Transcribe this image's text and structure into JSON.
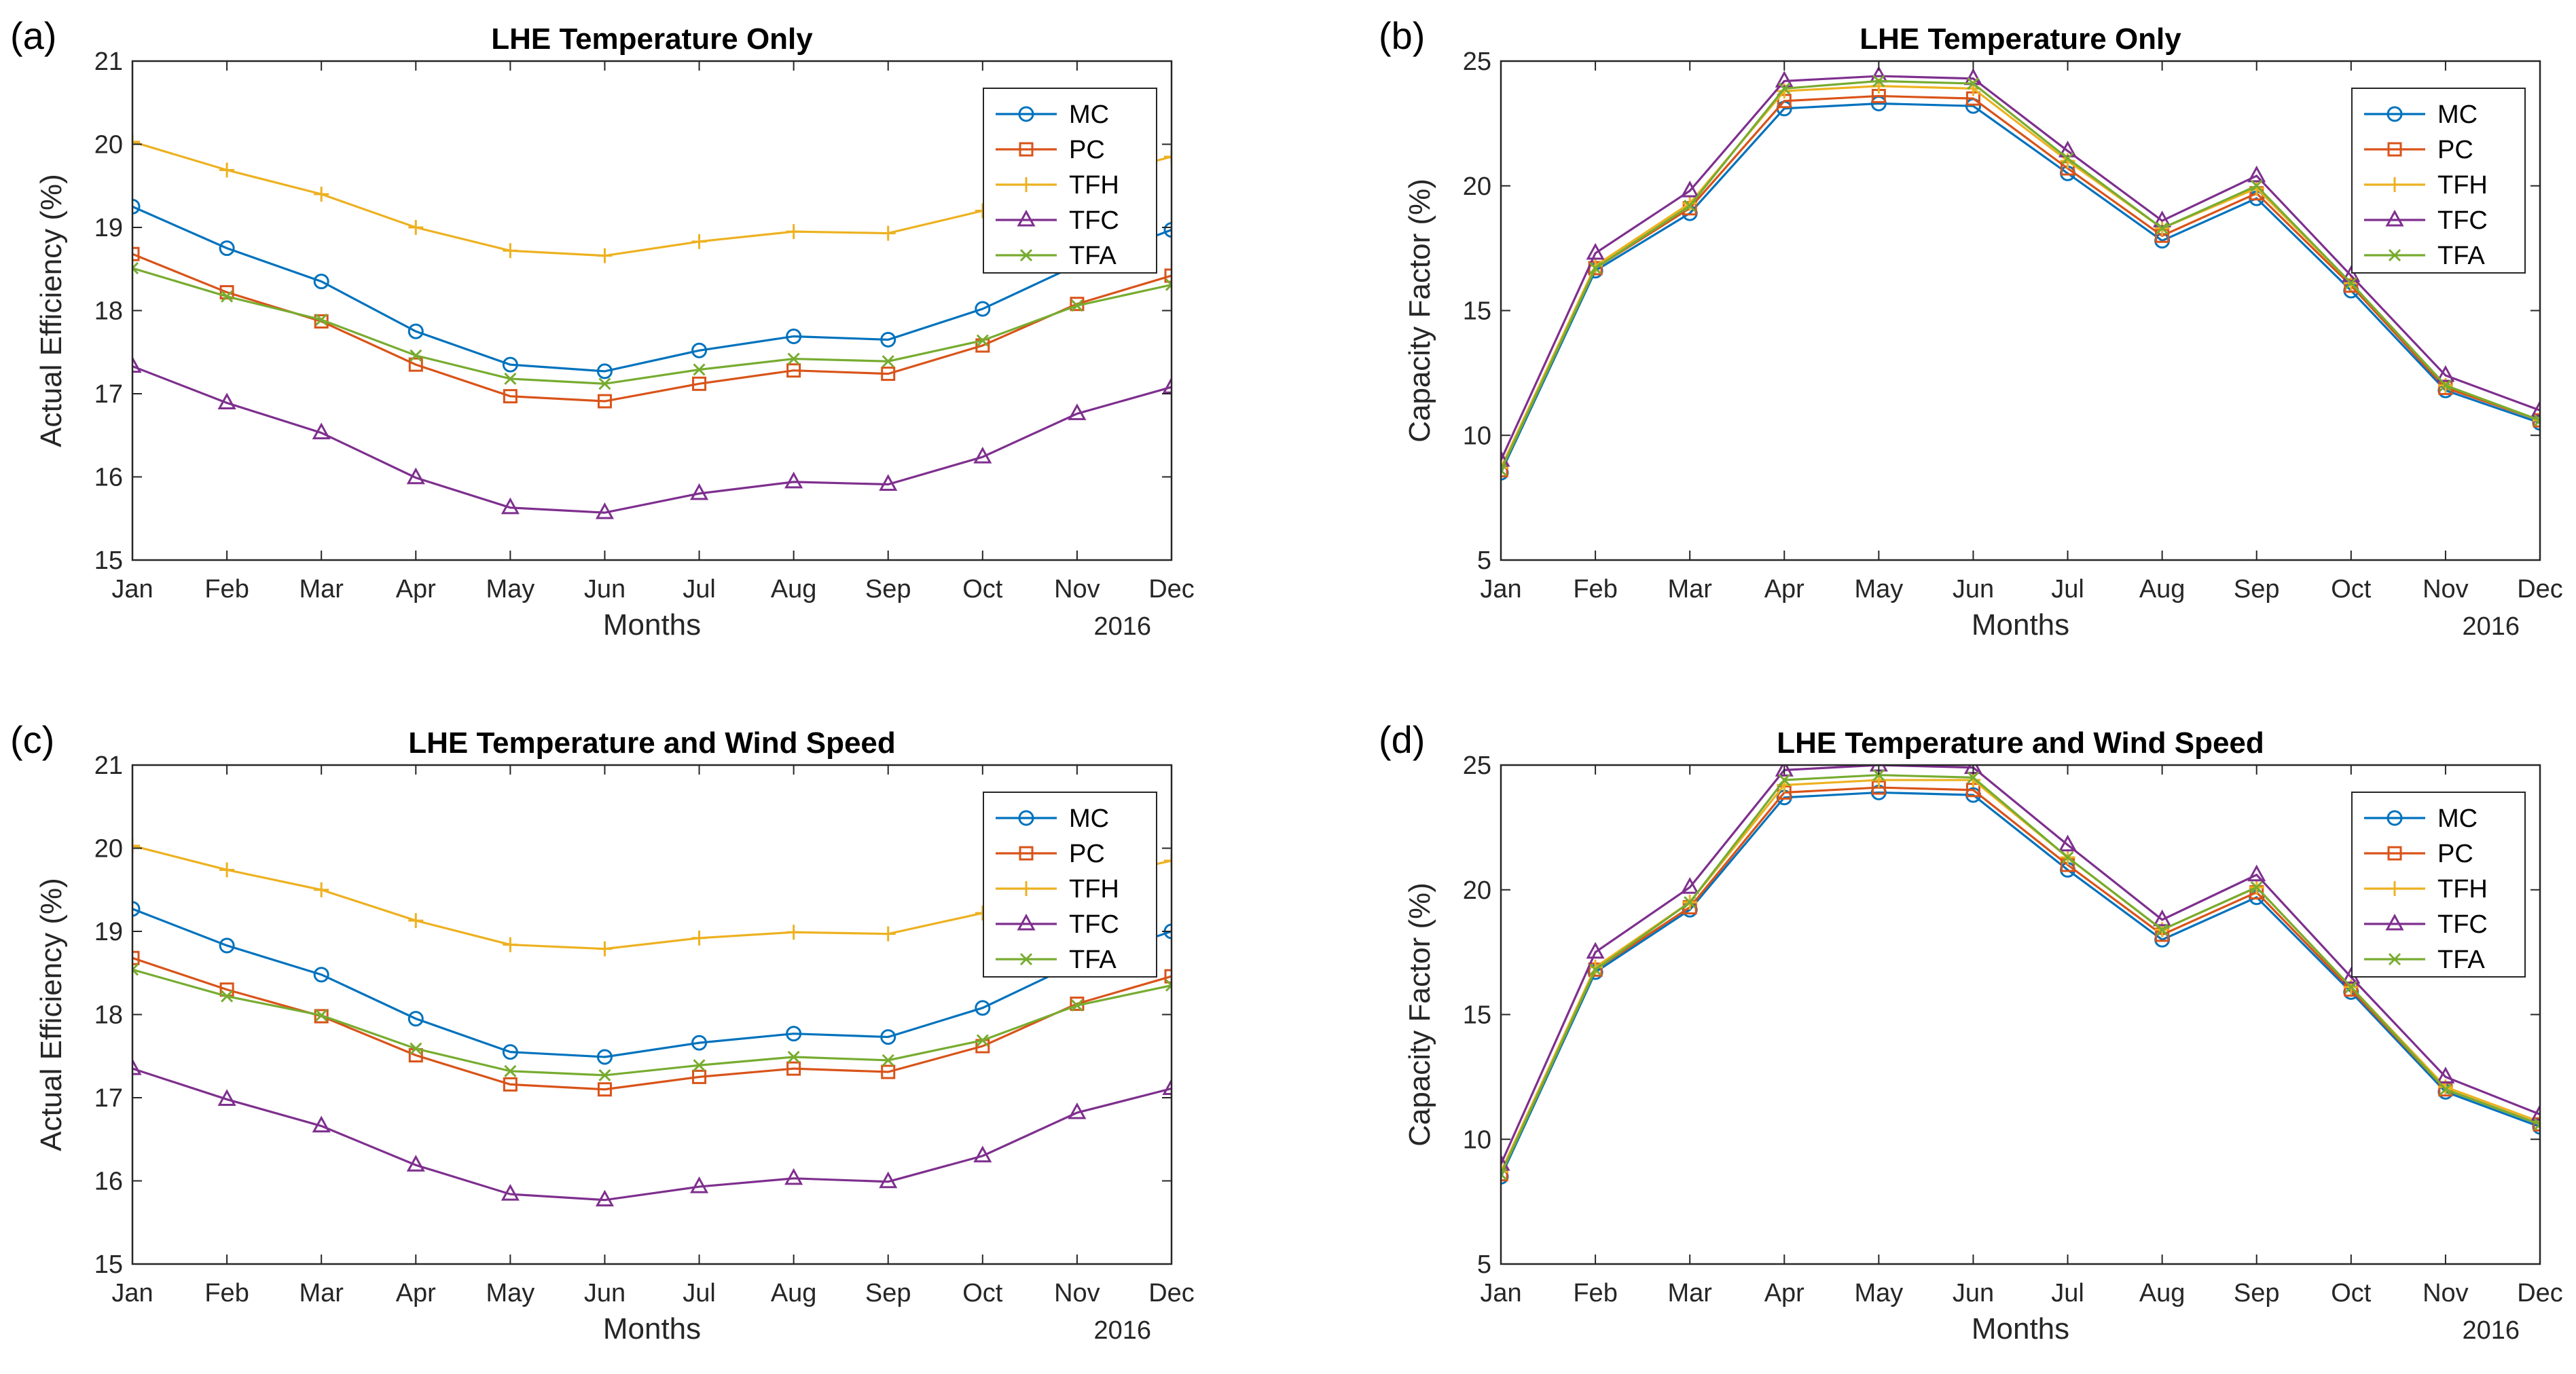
{
  "figure": {
    "months": [
      "Jan",
      "Feb",
      "Mar",
      "Apr",
      "May",
      "Jun",
      "Jul",
      "Aug",
      "Sep",
      "Oct",
      "Nov",
      "Dec"
    ],
    "colors": {
      "MC": "#0072BD",
      "PC": "#D95319",
      "TFH": "#EDB120",
      "TFC": "#7E2F8E",
      "TFA": "#77AC30"
    },
    "markers": {
      "MC": "circle",
      "PC": "square",
      "TFH": "plus",
      "TFC": "triangle",
      "TFA": "cross"
    }
  },
  "chart_data": [
    {
      "panel": "(a)",
      "type": "line",
      "title": "LHE Temperature Only",
      "xlabel": "Months",
      "ylabel": "Actual Efficiency (%)",
      "year_label": "2016",
      "categories": [
        "Jan",
        "Feb",
        "Mar",
        "Apr",
        "May",
        "Jun",
        "Jul",
        "Aug",
        "Sep",
        "Oct",
        "Nov",
        "Dec"
      ],
      "ylim": [
        15,
        21
      ],
      "yticks": [
        "15",
        "16",
        "17",
        "18",
        "19",
        "20",
        "21"
      ],
      "legend_position": "top-right",
      "series": [
        {
          "name": "MC",
          "values": [
            19.25,
            18.75,
            18.35,
            17.75,
            17.35,
            17.27,
            17.52,
            17.69,
            17.65,
            18.02,
            18.55,
            18.97
          ]
        },
        {
          "name": "PC",
          "values": [
            18.68,
            18.22,
            17.87,
            17.35,
            16.97,
            16.91,
            17.12,
            17.28,
            17.24,
            17.58,
            18.08,
            18.42
          ]
        },
        {
          "name": "TFH",
          "values": [
            20.03,
            19.69,
            19.4,
            19.0,
            18.72,
            18.66,
            18.83,
            18.95,
            18.93,
            19.2,
            19.55,
            19.85
          ]
        },
        {
          "name": "TFC",
          "values": [
            17.33,
            16.89,
            16.53,
            15.99,
            15.63,
            15.57,
            15.8,
            15.94,
            15.91,
            16.24,
            16.76,
            17.08
          ]
        },
        {
          "name": "TFA",
          "values": [
            18.51,
            18.17,
            17.89,
            17.46,
            17.18,
            17.12,
            17.29,
            17.42,
            17.39,
            17.64,
            18.06,
            18.31
          ]
        }
      ]
    },
    {
      "panel": "(b)",
      "type": "line",
      "title": "LHE Temperature Only",
      "xlabel": "Months",
      "ylabel": "Capacity Factor (%)",
      "year_label": "2016",
      "categories": [
        "Jan",
        "Feb",
        "Mar",
        "Apr",
        "May",
        "Jun",
        "Jul",
        "Aug",
        "Sep",
        "Oct",
        "Nov",
        "Dec"
      ],
      "ylim": [
        5,
        25
      ],
      "yticks": [
        "5",
        "10",
        "15",
        "20",
        "25"
      ],
      "legend_position": "top-right",
      "series": [
        {
          "name": "MC",
          "values": [
            8.5,
            16.6,
            18.9,
            23.1,
            23.3,
            23.2,
            20.5,
            17.8,
            19.5,
            15.8,
            11.8,
            10.5
          ]
        },
        {
          "name": "PC",
          "values": [
            8.6,
            16.7,
            19.1,
            23.4,
            23.6,
            23.5,
            20.7,
            18.0,
            19.7,
            16.0,
            11.9,
            10.6
          ]
        },
        {
          "name": "TFH",
          "values": [
            8.7,
            16.8,
            19.3,
            23.8,
            24.0,
            23.9,
            21.0,
            18.3,
            19.9,
            16.1,
            12.0,
            10.6
          ]
        },
        {
          "name": "TFC",
          "values": [
            9.0,
            17.3,
            19.8,
            24.2,
            24.4,
            24.3,
            21.4,
            18.6,
            20.4,
            16.4,
            12.4,
            11.0
          ]
        },
        {
          "name": "TFA",
          "values": [
            8.6,
            16.7,
            19.2,
            23.9,
            24.2,
            24.1,
            21.1,
            18.3,
            20.0,
            16.1,
            12.0,
            10.6
          ]
        }
      ]
    },
    {
      "panel": "(c)",
      "type": "line",
      "title": "LHE Temperature and Wind Speed",
      "xlabel": "Months",
      "ylabel": "Actual Efficiency (%)",
      "year_label": "2016",
      "categories": [
        "Jan",
        "Feb",
        "Mar",
        "Apr",
        "May",
        "Jun",
        "Jul",
        "Aug",
        "Sep",
        "Oct",
        "Nov",
        "Dec"
      ],
      "ylim": [
        15,
        21
      ],
      "yticks": [
        "15",
        "16",
        "17",
        "18",
        "19",
        "20",
        "21"
      ],
      "legend_position": "top-right",
      "series": [
        {
          "name": "MC",
          "values": [
            19.27,
            18.83,
            18.48,
            17.95,
            17.55,
            17.49,
            17.66,
            17.77,
            17.73,
            18.08,
            18.62,
            19.0
          ]
        },
        {
          "name": "PC",
          "values": [
            18.68,
            18.3,
            17.98,
            17.51,
            17.16,
            17.1,
            17.25,
            17.35,
            17.31,
            17.62,
            18.13,
            18.46
          ]
        },
        {
          "name": "TFH",
          "values": [
            20.03,
            19.74,
            19.5,
            19.13,
            18.84,
            18.79,
            18.92,
            18.99,
            18.97,
            19.22,
            19.6,
            19.85
          ]
        },
        {
          "name": "TFC",
          "values": [
            17.35,
            16.98,
            16.66,
            16.19,
            15.84,
            15.77,
            15.93,
            16.03,
            15.99,
            16.3,
            16.82,
            17.11
          ]
        },
        {
          "name": "TFA",
          "values": [
            18.54,
            18.22,
            17.99,
            17.59,
            17.32,
            17.27,
            17.39,
            17.49,
            17.45,
            17.69,
            18.11,
            18.35
          ]
        }
      ]
    },
    {
      "panel": "(d)",
      "type": "line",
      "title": "LHE Temperature and Wind Speed",
      "xlabel": "Months",
      "ylabel": "Capacity Factor (%)",
      "year_label": "2016",
      "categories": [
        "Jan",
        "Feb",
        "Mar",
        "Apr",
        "May",
        "Jun",
        "Jul",
        "Aug",
        "Sep",
        "Oct",
        "Nov",
        "Dec"
      ],
      "ylim": [
        5,
        25
      ],
      "yticks": [
        "5",
        "10",
        "15",
        "20",
        "25"
      ],
      "legend_position": "top-right",
      "series": [
        {
          "name": "MC",
          "values": [
            8.5,
            16.7,
            19.2,
            23.7,
            23.9,
            23.8,
            20.8,
            18.0,
            19.7,
            15.9,
            11.9,
            10.5
          ]
        },
        {
          "name": "PC",
          "values": [
            8.6,
            16.8,
            19.3,
            23.9,
            24.1,
            24.0,
            21.0,
            18.2,
            19.9,
            16.0,
            12.0,
            10.6
          ]
        },
        {
          "name": "TFH",
          "values": [
            8.7,
            16.9,
            19.5,
            24.2,
            24.4,
            24.4,
            21.3,
            18.4,
            20.1,
            16.1,
            12.1,
            10.7
          ]
        },
        {
          "name": "TFC",
          "values": [
            9.0,
            17.5,
            20.1,
            24.8,
            25.0,
            24.9,
            21.8,
            18.8,
            20.6,
            16.5,
            12.5,
            11.0
          ]
        },
        {
          "name": "TFA",
          "values": [
            8.6,
            16.8,
            19.5,
            24.4,
            24.6,
            24.5,
            21.3,
            18.4,
            20.1,
            16.1,
            12.0,
            10.6
          ]
        }
      ]
    }
  ]
}
